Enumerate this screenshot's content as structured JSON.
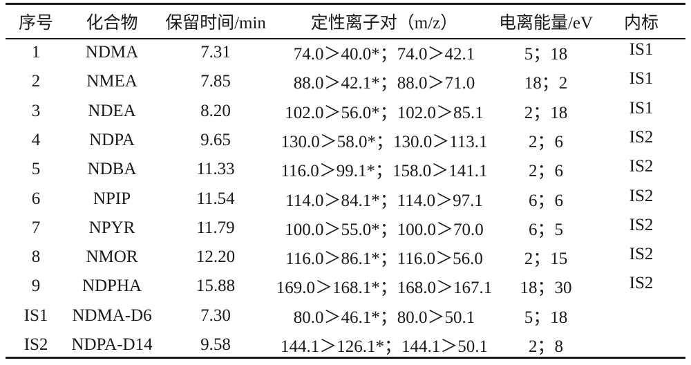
{
  "table": {
    "header": [
      "序号",
      "化合物",
      "保留时间/min",
      "定性离子对（m/z）",
      "电离能量/eV",
      "内标"
    ],
    "rows": [
      [
        "1",
        "NDMA",
        "7.31",
        "74.0＞40.0*；74.0＞42.1",
        "5；18",
        "IS1"
      ],
      [
        "2",
        "NMEA",
        "7.85",
        "88.0＞42.1*；88.0＞71.0",
        "18；2",
        "IS1"
      ],
      [
        "3",
        "NDEA",
        "8.20",
        "102.0＞56.0*；102.0＞85.1",
        "2；18",
        "IS1"
      ],
      [
        "4",
        "NDPA",
        "9.65",
        "130.0＞58.0*；130.0＞113.1",
        "2；6",
        "IS2"
      ],
      [
        "5",
        "NDBA",
        "11.33",
        "116.0＞99.1*；158.0＞141.1",
        "2；6",
        "IS2"
      ],
      [
        "6",
        "NPIP",
        "11.54",
        "114.0＞84.1*；114.0＞97.1",
        "6；6",
        "IS2"
      ],
      [
        "7",
        "NPYR",
        "11.79",
        "100.0＞55.0*；100.0＞70.0",
        "6；5",
        "IS2"
      ],
      [
        "8",
        "NMOR",
        "12.20",
        "116.0＞86.1*；116.0＞56.0",
        "2；15",
        "IS2"
      ],
      [
        "9",
        "NDPHA",
        "15.88",
        "169.0＞168.1*；168.0＞167.1",
        "18；30",
        "IS2"
      ],
      [
        "IS1",
        "NDMA-D6",
        "7.30",
        "80.0＞46.1*；80.0＞50.1",
        "5；18"
      ],
      [
        "IS2",
        "NDPA-D14",
        "9.58",
        "144.1＞126.1*；144.1＞50.1",
        "2；8"
      ]
    ]
  }
}
